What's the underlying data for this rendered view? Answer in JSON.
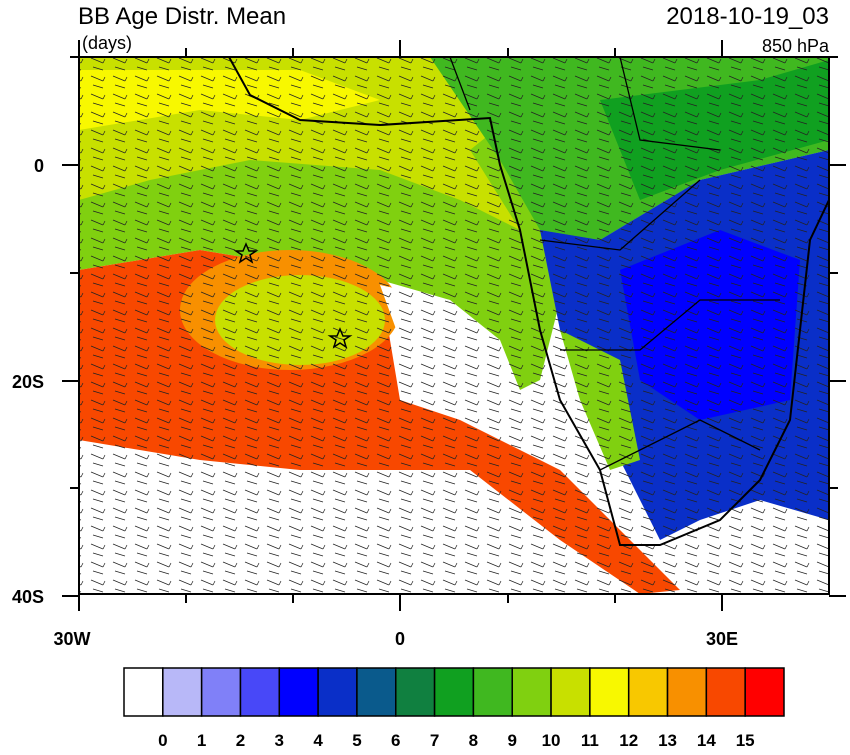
{
  "header": {
    "title": "BB Age Distr. Mean",
    "units": "(days)",
    "time": "2018-10-19_03",
    "level": "850 hPa"
  },
  "axes": {
    "y_labels": [
      "0",
      "20S",
      "40S"
    ],
    "x_labels": [
      "30W",
      "0",
      "30E"
    ]
  },
  "colorbar": {
    "labels": [
      0,
      1,
      2,
      3,
      4,
      5,
      6,
      7,
      8,
      9,
      10,
      11,
      12,
      13,
      14,
      15
    ],
    "colors": [
      "#ffffff",
      "#b8b8f8",
      "#8080f8",
      "#4848f8",
      "#0000ff",
      "#0a2fc8",
      "#0a5a8c",
      "#108040",
      "#10a020",
      "#40b820",
      "#80d010",
      "#c8e000",
      "#f8f800",
      "#f8c800",
      "#f89000",
      "#f84800",
      "#ff0000"
    ]
  }
}
